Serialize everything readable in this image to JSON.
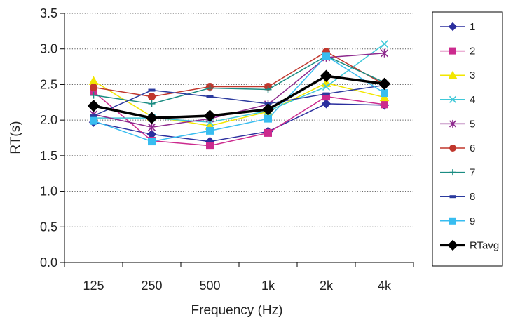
{
  "chart_data": {
    "type": "line",
    "title": "",
    "xlabel": "Frequency (Hz)",
    "ylabel": "RT(s)",
    "categories": [
      "125",
      "250",
      "500",
      "1k",
      "2k",
      "4k"
    ],
    "ylim": [
      0,
      3.5
    ],
    "yticks": [
      "0.0",
      "0.5",
      "1.0",
      "1.5",
      "2.0",
      "2.5",
      "3.0",
      "3.5"
    ],
    "grid": "horizontal-dotted",
    "legend": "right",
    "series": [
      {
        "name": "1",
        "color": "#2b2f9e",
        "marker": "diamond",
        "values": [
          1.97,
          1.8,
          1.7,
          1.84,
          2.23,
          2.21
        ]
      },
      {
        "name": "2",
        "color": "#cc2a8e",
        "marker": "square",
        "values": [
          2.4,
          1.71,
          1.64,
          1.82,
          2.33,
          2.22
        ]
      },
      {
        "name": "3",
        "color": "#f2e600",
        "marker": "triangle",
        "values": [
          2.55,
          2.05,
          1.92,
          2.12,
          2.52,
          2.32
        ]
      },
      {
        "name": "4",
        "color": "#40c8d8",
        "marker": "x",
        "values": [
          2.03,
          2.03,
          1.97,
          2.13,
          2.47,
          3.07
        ]
      },
      {
        "name": "5",
        "color": "#8e2a8e",
        "marker": "star",
        "values": [
          2.08,
          1.9,
          2.02,
          2.22,
          2.88,
          2.94
        ]
      },
      {
        "name": "6",
        "color": "#c0362c",
        "marker": "circle",
        "values": [
          2.46,
          2.33,
          2.47,
          2.47,
          2.96,
          2.5
        ]
      },
      {
        "name": "7",
        "color": "#1a8c82",
        "marker": "plus",
        "values": [
          2.35,
          2.23,
          2.45,
          2.43,
          2.9,
          2.53
        ]
      },
      {
        "name": "8",
        "color": "#2b3a9e",
        "marker": "dash",
        "values": [
          2.06,
          2.42,
          2.33,
          2.23,
          2.37,
          2.49
        ]
      },
      {
        "name": "9",
        "color": "#38bdf0",
        "marker": "square",
        "values": [
          1.99,
          1.7,
          1.85,
          2.02,
          2.9,
          2.38
        ]
      },
      {
        "name": "RTavg",
        "color": "#000000",
        "marker": "diamond",
        "values": [
          2.2,
          2.03,
          2.06,
          2.15,
          2.62,
          2.51
        ]
      }
    ]
  }
}
